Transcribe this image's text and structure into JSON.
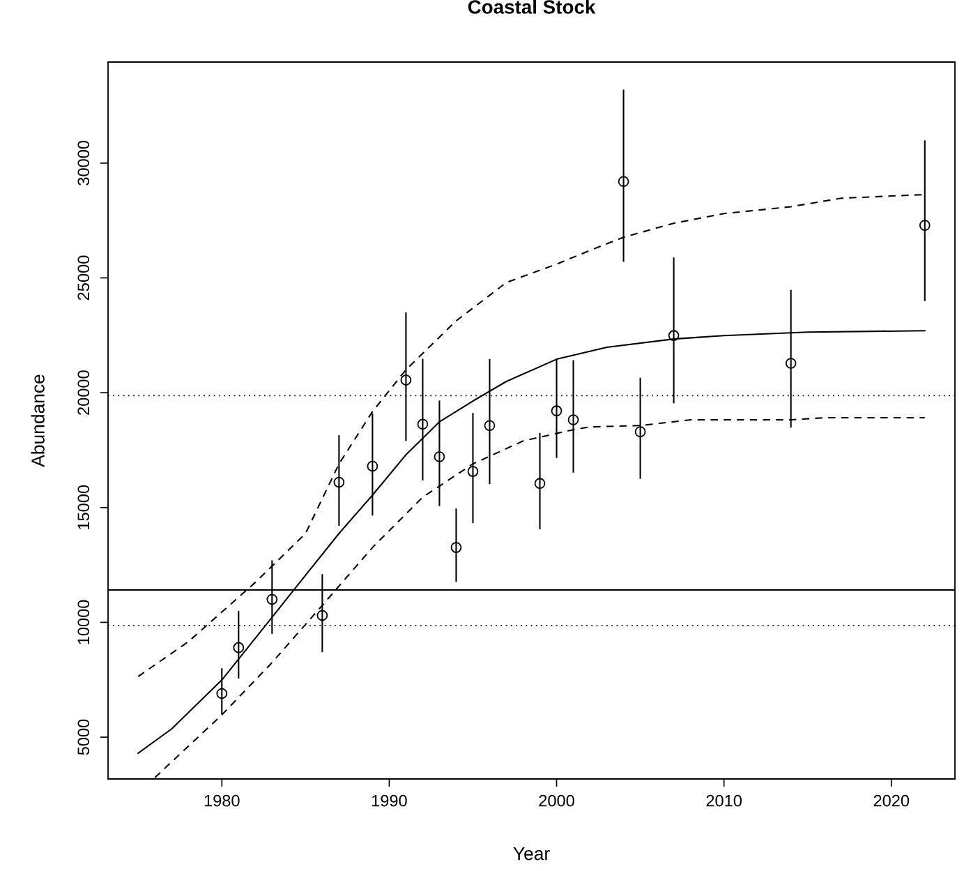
{
  "chart_data": {
    "type": "scatter",
    "title": "Coastal Stock",
    "xlabel": "Year",
    "ylabel": "Abundance",
    "xlim": [
      1973.2,
      2023.8
    ],
    "ylim": [
      3180,
      34400
    ],
    "xticks": [
      1980,
      1990,
      2000,
      2010,
      2020
    ],
    "yticks": [
      5000,
      10000,
      15000,
      20000,
      25000,
      30000
    ],
    "grid": false,
    "ref_lines": [
      {
        "axis": "y",
        "value": 19870,
        "line_style": "dotted",
        "color": "#000000"
      },
      {
        "axis": "y",
        "value": 11410,
        "line_style": "solid",
        "color": "#000000"
      },
      {
        "axis": "y",
        "value": 9860,
        "line_style": "dotted",
        "color": "#000000"
      }
    ],
    "series": [
      {
        "color": "#000000",
        "marker": "circle",
        "x": [
          1980,
          1981,
          1983,
          1986,
          1987,
          1989,
          1991,
          1992,
          1993,
          1994,
          1995,
          1996,
          1999,
          2000,
          2001,
          2004,
          2005,
          2007,
          2014,
          2022
        ],
        "values": [
          6900,
          8900,
          11000,
          10300,
          16100,
          16800,
          20550,
          18630,
          17210,
          13260,
          16570,
          18570,
          16050,
          19210,
          18820,
          29200,
          18300,
          22490,
          21280,
          27290
        ],
        "errors": [
          [
            6000,
            8000
          ],
          [
            7550,
            10500
          ],
          [
            9500,
            12700
          ],
          [
            8700,
            12100
          ],
          [
            14200,
            18150
          ],
          [
            14650,
            19100
          ],
          [
            17900,
            23500
          ],
          [
            16180,
            21480
          ],
          [
            15060,
            19660
          ],
          [
            11760,
            14960
          ],
          [
            14320,
            19120
          ],
          [
            16020,
            21470
          ],
          [
            14050,
            18250
          ],
          [
            17160,
            21460
          ],
          [
            16520,
            21420
          ],
          [
            25700,
            33200
          ],
          [
            16250,
            20650
          ],
          [
            19540,
            25890
          ],
          [
            18480,
            24480
          ],
          [
            23990,
            30990
          ]
        ]
      },
      {
        "type": "line",
        "color": "#000000",
        "line_style": "solid",
        "marker": "none",
        "x": [
          1975,
          1977,
          1980,
          1983,
          1985,
          1987,
          1989,
          1991,
          1993,
          1995,
          1997,
          2000,
          2003,
          2007,
          2010,
          2015,
          2022
        ],
        "values": [
          4300,
          5360,
          7490,
          10220,
          12050,
          13870,
          15540,
          17300,
          18730,
          19640,
          20490,
          21460,
          21980,
          22340,
          22490,
          22640,
          22700
        ]
      },
      {
        "type": "line",
        "color": "#000000",
        "line_style": "dashed",
        "marker": "none",
        "x": [
          1975,
          1978,
          1982,
          1985,
          1987,
          1989,
          1991,
          1994,
          1997,
          2000,
          2002,
          2004,
          2007,
          2010,
          2014,
          2017,
          2022
        ],
        "values": [
          7640,
          9160,
          11740,
          13870,
          16900,
          19180,
          21000,
          23130,
          24800,
          25600,
          26200,
          26770,
          27380,
          27800,
          28100,
          28470,
          28630
        ]
      },
      {
        "type": "line",
        "color": "#000000",
        "line_style": "dashed",
        "marker": "none",
        "x": [
          1976,
          1980,
          1983,
          1986,
          1989,
          1992,
          1995,
          1998,
          2001,
          2002,
          2005,
          2008,
          2014,
          2016,
          2022
        ],
        "values": [
          3240,
          5970,
          8250,
          10740,
          13260,
          15450,
          16900,
          17900,
          18390,
          18510,
          18570,
          18820,
          18820,
          18910,
          18910
        ]
      }
    ]
  }
}
